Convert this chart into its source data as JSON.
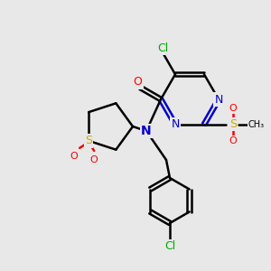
{
  "bg_color": "#e8e8e8",
  "atom_colors": {
    "C": "#000000",
    "N": "#0000cc",
    "O": "#ff0000",
    "S": "#ccaa00",
    "Cl": "#00aa00"
  },
  "bond_color": "#000000",
  "bond_width": 1.8,
  "figsize": [
    3.0,
    3.0
  ],
  "dpi": 100
}
